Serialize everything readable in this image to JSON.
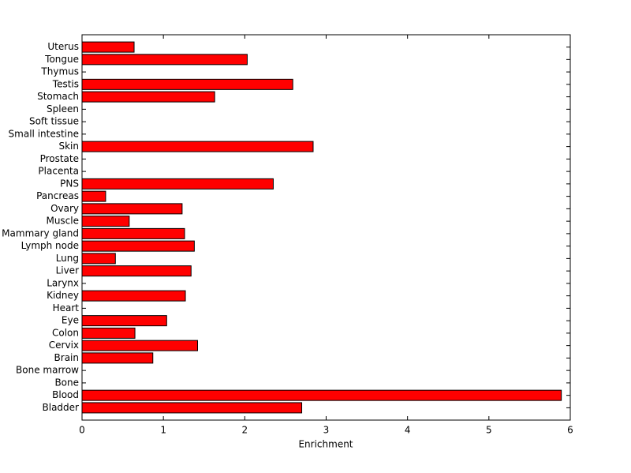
{
  "chart_data": {
    "type": "barh",
    "xlabel": "Enrichment",
    "categories": [
      "Bladder",
      "Blood",
      "Bone",
      "Bone marrow",
      "Brain",
      "Cervix",
      "Colon",
      "Eye",
      "Heart",
      "Kidney",
      "Larynx",
      "Liver",
      "Lung",
      "Lymph node",
      "Mammary gland",
      "Muscle",
      "Ovary",
      "Pancreas",
      "PNS",
      "Placenta",
      "Prostate",
      "Skin",
      "Small intestine",
      "Soft tissue",
      "Spleen",
      "Stomach",
      "Testis",
      "Thymus",
      "Tongue",
      "Uterus"
    ],
    "values": [
      2.7,
      5.89,
      0,
      0,
      0.87,
      1.42,
      0.65,
      1.04,
      0,
      1.27,
      0,
      1.34,
      0.41,
      1.38,
      1.26,
      0.58,
      1.23,
      0.29,
      2.35,
      0,
      0,
      2.84,
      0,
      0,
      0,
      1.63,
      2.59,
      0,
      2.03,
      0.64
    ],
    "color": "#ff0000",
    "xlim": [
      0,
      6
    ],
    "xticks": [
      0,
      1,
      2,
      3,
      4,
      5,
      6
    ]
  }
}
